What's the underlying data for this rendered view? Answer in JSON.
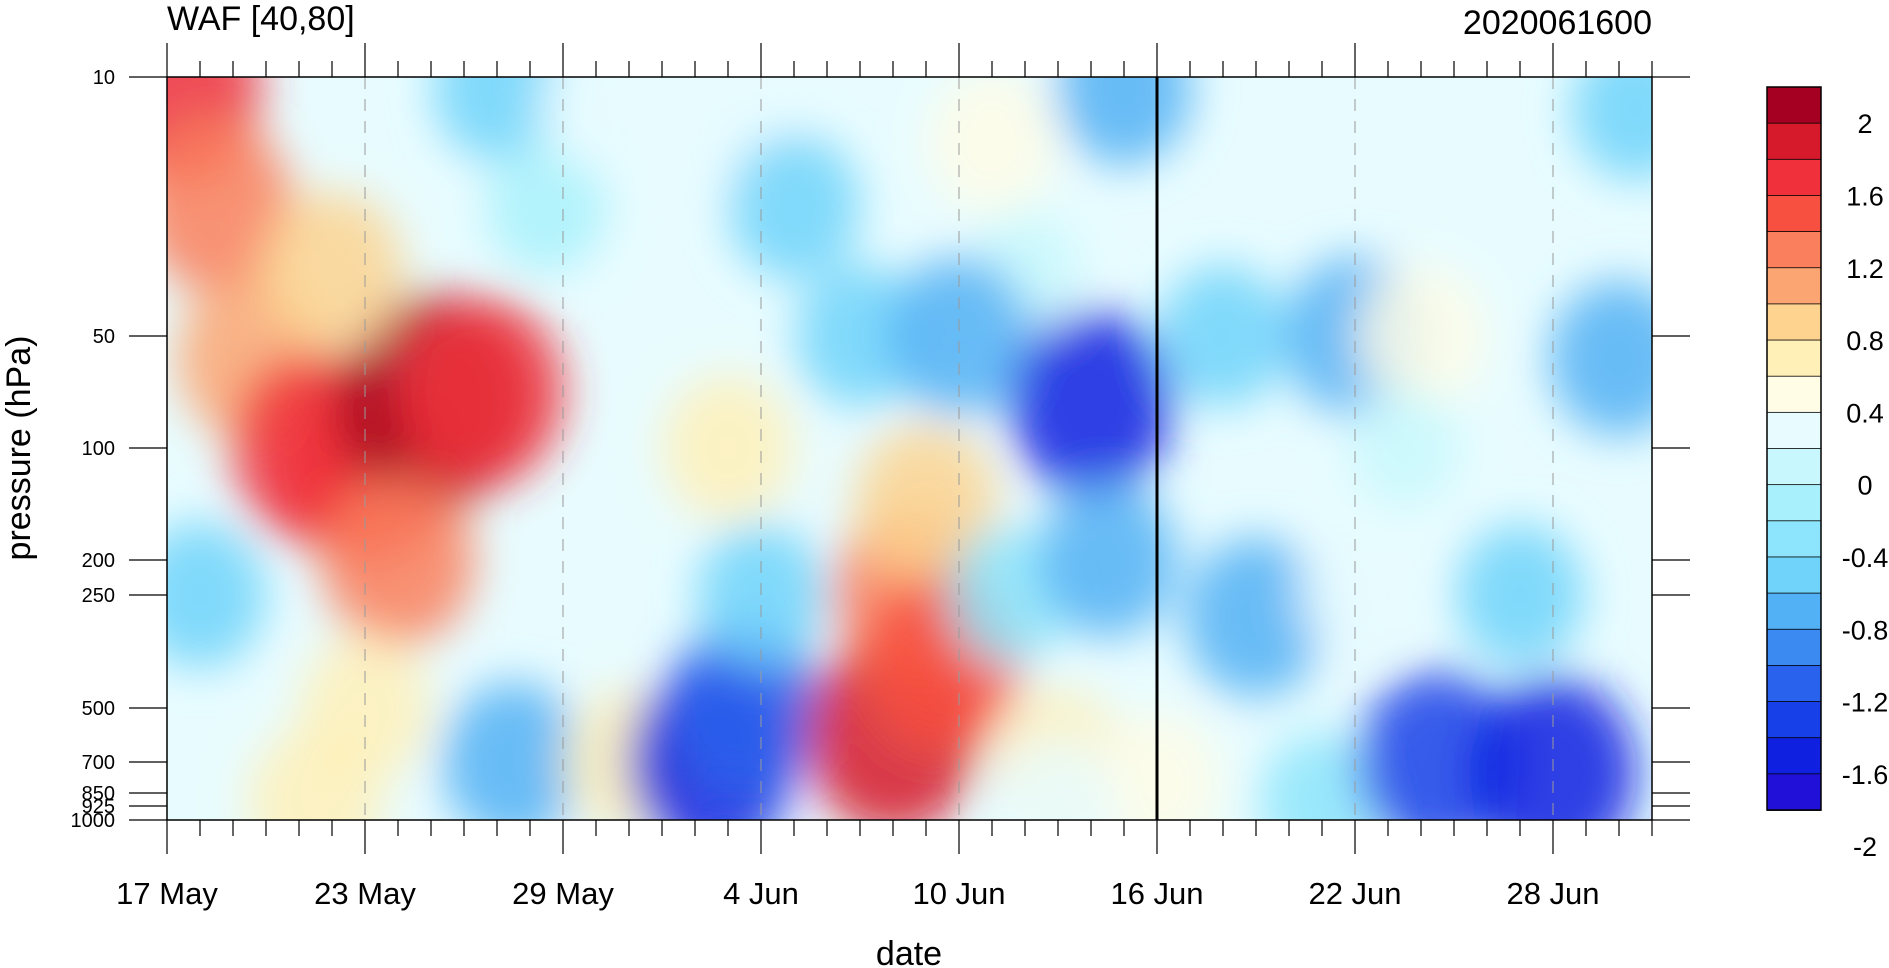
{
  "chart_data": {
    "type": "heatmap",
    "title": "WAF [40,80]",
    "subtitle": "2020061600",
    "xlabel": "date",
    "ylabel": "pressure (hPa)",
    "x_ticks": [
      "17 May",
      "23 May",
      "29 May",
      "4 Jun",
      "10 Jun",
      "16 Jun",
      "22 Jun",
      "28 Jun"
    ],
    "x_tick_day_offsets": [
      0,
      6,
      12,
      18,
      24,
      30,
      36,
      42
    ],
    "x_range_days": [
      0,
      45
    ],
    "y_ticks": [
      {
        "label": "10",
        "value": 10
      },
      {
        "label": "50",
        "value": 50
      },
      {
        "label": "100",
        "value": 100
      },
      {
        "label": "200",
        "value": 200
      },
      {
        "label": "250",
        "value": 250
      },
      {
        "label": "500",
        "value": 500
      },
      {
        "label": "700",
        "value": 700
      },
      {
        "label": "850",
        "value": 850
      },
      {
        "label": "925",
        "value": 925
      },
      {
        "label": "1000",
        "value": 1000
      }
    ],
    "y_scale": "pressure (log-like), 10 at top, 1000 at bottom",
    "marker_line_day": 30,
    "colorbar": {
      "labels": [
        "2",
        "1.6",
        "1.2",
        "0.8",
        "0.4",
        "0",
        "-0.4",
        "-0.8",
        "-1.2",
        "-1.6",
        "-2"
      ],
      "colors": [
        "#a50021",
        "#d61a2c",
        "#f0303a",
        "#f85040",
        "#fa7f5c",
        "#fba672",
        "#fdd38f",
        "#fff0b8",
        "#fffde6",
        "#e8fcff",
        "#c8f8fd",
        "#a8f1fc",
        "#8ce5fc",
        "#6fd3fa",
        "#52b0f5",
        "#3a8af2",
        "#2962ec",
        "#1840e8",
        "#1020e0",
        "#2010d8"
      ]
    },
    "blobs": [
      {
        "day": 0.3,
        "p": 12,
        "value": 1.6
      },
      {
        "day": 1.5,
        "p": 30,
        "value": 1.2
      },
      {
        "day": 2.5,
        "p": 60,
        "value": 1.0
      },
      {
        "day": 4.5,
        "p": 100,
        "value": 1.6
      },
      {
        "day": 6.0,
        "p": 120,
        "value": 1.6
      },
      {
        "day": 8.0,
        "p": 80,
        "value": 2.2
      },
      {
        "day": 9.5,
        "p": 75,
        "value": 1.6
      },
      {
        "day": 7.0,
        "p": 200,
        "value": 1.2
      },
      {
        "day": 5.0,
        "p": 40,
        "value": 0.9
      },
      {
        "day": 6.0,
        "p": 500,
        "value": 0.6
      },
      {
        "day": 4.5,
        "p": 900,
        "value": 0.7
      },
      {
        "day": 10.5,
        "p": 700,
        "value": -0.9
      },
      {
        "day": 1.0,
        "p": 250,
        "value": -0.6
      },
      {
        "day": 10.0,
        "p": 12,
        "value": -0.5
      },
      {
        "day": 11.5,
        "p": 30,
        "value": -0.3
      },
      {
        "day": 14.0,
        "p": 700,
        "value": 0.6
      },
      {
        "day": 17.0,
        "p": 100,
        "value": 0.6
      },
      {
        "day": 17.5,
        "p": 20,
        "value": 0.1
      },
      {
        "day": 13.0,
        "p": 15,
        "value": 0.1
      },
      {
        "day": 19.0,
        "p": 30,
        "value": -0.6
      },
      {
        "day": 21.0,
        "p": 50,
        "value": -0.5
      },
      {
        "day": 16.5,
        "p": 700,
        "value": -1.6
      },
      {
        "day": 17.5,
        "p": 500,
        "value": -1.2
      },
      {
        "day": 18.0,
        "p": 250,
        "value": -0.5
      },
      {
        "day": 22.0,
        "p": 600,
        "value": 1.8
      },
      {
        "day": 22.5,
        "p": 250,
        "value": 1.2
      },
      {
        "day": 23.0,
        "p": 150,
        "value": 0.9
      },
      {
        "day": 23.5,
        "p": 400,
        "value": 1.3
      },
      {
        "day": 25.0,
        "p": 20,
        "value": 0.5
      },
      {
        "day": 26.0,
        "p": 40,
        "value": 0.0
      },
      {
        "day": 24.0,
        "p": 50,
        "value": -0.9
      },
      {
        "day": 25.5,
        "p": 250,
        "value": -0.4
      },
      {
        "day": 28.0,
        "p": 80,
        "value": -1.5
      },
      {
        "day": 28.5,
        "p": 200,
        "value": -0.8
      },
      {
        "day": 27.0,
        "p": 700,
        "value": 0.6
      },
      {
        "day": 30.0,
        "p": 800,
        "value": 0.5
      },
      {
        "day": 27.0,
        "p": 900,
        "value": 0.3
      },
      {
        "day": 29.0,
        "p": 12,
        "value": -0.7
      },
      {
        "day": 32.0,
        "p": 50,
        "value": -0.5
      },
      {
        "day": 33.0,
        "p": 300,
        "value": -0.9
      },
      {
        "day": 35.0,
        "p": 900,
        "value": -0.4
      },
      {
        "day": 36.0,
        "p": 50,
        "value": -0.9
      },
      {
        "day": 36.0,
        "p": 250,
        "value": 0.1
      },
      {
        "day": 38.0,
        "p": 50,
        "value": 0.5
      },
      {
        "day": 37.5,
        "p": 100,
        "value": 0.0
      },
      {
        "day": 38.5,
        "p": 700,
        "value": -1.4
      },
      {
        "day": 42.0,
        "p": 750,
        "value": -1.6
      },
      {
        "day": 44.0,
        "p": 60,
        "value": -0.8
      },
      {
        "day": 41.0,
        "p": 250,
        "value": -0.5
      },
      {
        "day": 44.5,
        "p": 15,
        "value": -0.5
      }
    ]
  }
}
